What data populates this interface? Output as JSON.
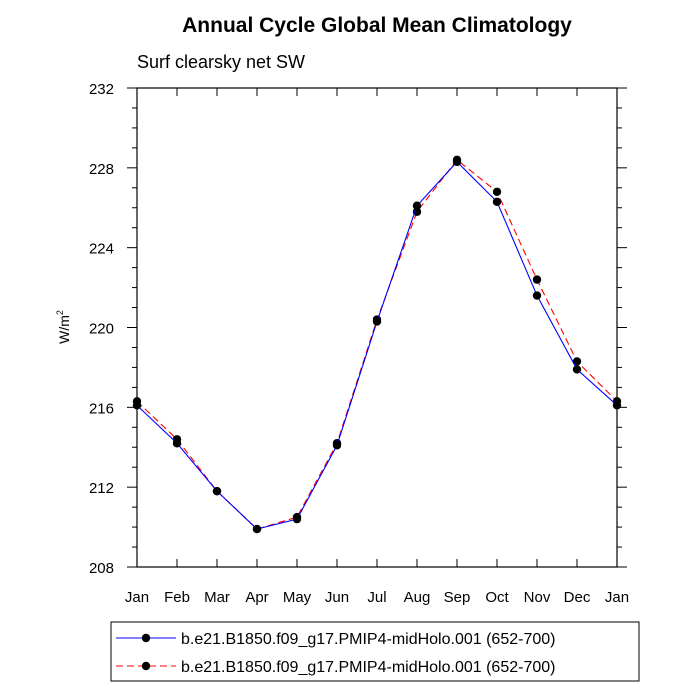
{
  "chart_data": {
    "type": "line",
    "title": "Annual Cycle Global Mean Climatology",
    "subtitle": "Surf clearsky net SW",
    "ylabel_base": "W/m",
    "ylabel_sup": "2",
    "xlabel": "",
    "categories": [
      "Jan",
      "Feb",
      "Mar",
      "Apr",
      "May",
      "Jun",
      "Jul",
      "Aug",
      "Sep",
      "Oct",
      "Nov",
      "Dec",
      "Jan"
    ],
    "ylim": [
      208,
      232
    ],
    "yticks": [
      208,
      212,
      216,
      220,
      224,
      228,
      232
    ],
    "ytick_labels": [
      "208",
      "212",
      "216",
      "220",
      "224",
      "228",
      "232"
    ],
    "series": [
      {
        "name": "b.e21.B1850.f09_g17.PMIP4-midHolo.001 (652-700)",
        "color": "#0000ff",
        "dash": "solid",
        "marker": "filled-circle",
        "values": [
          216.1,
          214.2,
          211.8,
          209.9,
          210.4,
          214.1,
          220.3,
          226.1,
          228.3,
          226.3,
          221.6,
          217.9,
          216.1
        ]
      },
      {
        "name": "b.e21.B1850.f09_g17.PMIP4-midHolo.001 (652-700)",
        "color": "#ff0000",
        "dash": "dashed",
        "marker": "filled-circle",
        "values": [
          216.3,
          214.4,
          211.8,
          209.9,
          210.5,
          214.2,
          220.4,
          225.8,
          228.4,
          226.8,
          222.4,
          218.3,
          216.3
        ]
      }
    ],
    "legend_position": "bottom"
  }
}
